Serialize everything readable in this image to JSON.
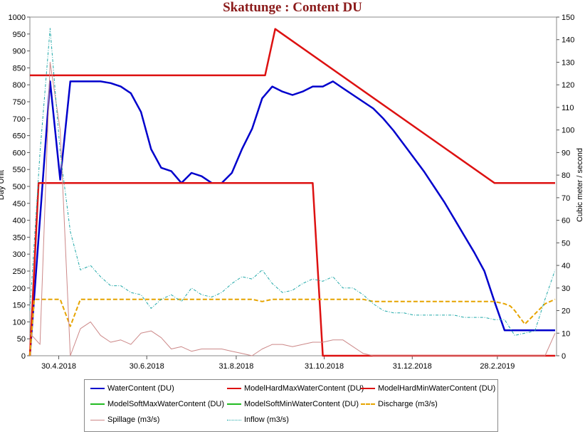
{
  "chart_data": {
    "type": "line",
    "title": "Skattunge : Content DU",
    "ylabel_left": "Day Unit",
    "ylabel_right": "Cubic meter / second",
    "ylim_left": [
      0,
      1000
    ],
    "ylim_right": [
      0,
      150
    ],
    "yticks_left": [
      "0",
      "50",
      "100",
      "150",
      "200",
      "250",
      "300",
      "350",
      "400",
      "450",
      "500",
      "550",
      "600",
      "650",
      "700",
      "750",
      "800",
      "850",
      "900",
      "950",
      "1000"
    ],
    "yticks_right": [
      "0",
      "10",
      "20",
      "30",
      "40",
      "50",
      "60",
      "70",
      "80",
      "90",
      "100",
      "110",
      "120",
      "130",
      "140",
      "150"
    ],
    "xlim": [
      0,
      365
    ],
    "xticks": [
      {
        "x": 20,
        "label": "30.4.2018"
      },
      {
        "x": 81,
        "label": "30.6.2018"
      },
      {
        "x": 143,
        "label": "31.8.2018"
      },
      {
        "x": 204,
        "label": "31.10.2018"
      },
      {
        "x": 265,
        "label": "31.12.2018"
      },
      {
        "x": 324,
        "label": "28.2.2019"
      }
    ],
    "series": [
      {
        "name": "WaterContent (DU)",
        "axis": "left",
        "color": "#0000cc",
        "style": "solid",
        "width": 2.5,
        "x": [
          0,
          14,
          21,
          28,
          35,
          42,
          49,
          56,
          63,
          70,
          77,
          84,
          91,
          98,
          105,
          112,
          119,
          126,
          133,
          140,
          147,
          154,
          161,
          168,
          175,
          182,
          189,
          196,
          203,
          210,
          217,
          224,
          231,
          238,
          245,
          252,
          259,
          266,
          273,
          280,
          287,
          294,
          301,
          308,
          315,
          322,
          329,
          336,
          343,
          350,
          357,
          364
        ],
        "y": [
          0,
          810,
          520,
          810,
          810,
          810,
          810,
          805,
          795,
          775,
          720,
          610,
          555,
          545,
          510,
          540,
          530,
          510,
          510,
          540,
          610,
          670,
          760,
          795,
          780,
          770,
          780,
          795,
          795,
          810,
          790,
          770,
          750,
          730,
          700,
          665,
          625,
          585,
          545,
          500,
          455,
          405,
          355,
          305,
          250,
          160,
          75,
          75,
          75,
          75,
          75,
          75
        ]
      },
      {
        "name": "ModelHardMaxWaterContent (DU)",
        "axis": "left",
        "color": "#dd1111",
        "style": "solid",
        "width": 2.5,
        "x": [
          0,
          163,
          170,
          322,
          364
        ],
        "y": [
          828,
          828,
          965,
          510,
          510
        ]
      },
      {
        "name": "ModelHardMinWaterContent (DU)",
        "axis": "left",
        "color": "#dd1111",
        "style": "solid",
        "width": 2.5,
        "x": [
          0,
          6,
          196,
          203,
          364
        ],
        "y": [
          0,
          510,
          510,
          0,
          0
        ]
      },
      {
        "name": "ModelSoftMaxWaterContent (DU)",
        "axis": "left",
        "color": "#22bb22",
        "style": "solid",
        "width": 2,
        "x": [],
        "y": []
      },
      {
        "name": "ModelSoftMinWaterContent (DU)",
        "axis": "left",
        "color": "#22bb22",
        "style": "solid",
        "width": 2,
        "x": [],
        "y": []
      },
      {
        "name": "Discharge (m3/s)",
        "axis": "right",
        "color": "#e6a400",
        "style": "dashed",
        "width": 2,
        "x": [
          0,
          3,
          21,
          28,
          35,
          42,
          49,
          56,
          63,
          70,
          77,
          84,
          91,
          98,
          105,
          112,
          119,
          126,
          133,
          140,
          147,
          154,
          161,
          168,
          175,
          182,
          189,
          196,
          203,
          210,
          217,
          224,
          231,
          238,
          245,
          252,
          259,
          266,
          273,
          280,
          287,
          294,
          301,
          308,
          315,
          322,
          329,
          333,
          336,
          343,
          357,
          364
        ],
        "y": [
          0,
          25,
          25,
          13,
          25,
          25,
          25,
          25,
          25,
          25,
          25,
          25,
          25,
          25,
          25,
          25,
          25,
          25,
          25,
          25,
          25,
          25,
          24,
          25,
          25,
          25,
          25,
          25,
          25,
          25,
          25,
          25,
          25,
          24,
          24,
          24,
          24,
          24,
          24,
          24,
          24,
          24,
          24,
          24,
          24,
          24,
          23,
          22,
          20,
          14,
          23,
          25
        ]
      },
      {
        "name": "Spillage (m3/s)",
        "axis": "right",
        "color": "#cc8888",
        "style": "solid",
        "width": 1,
        "x": [
          0,
          7,
          14,
          21,
          28,
          35,
          42,
          49,
          56,
          63,
          70,
          77,
          84,
          91,
          98,
          105,
          112,
          119,
          126,
          133,
          140,
          147,
          154,
          161,
          168,
          175,
          182,
          189,
          196,
          203,
          210,
          217,
          224,
          231,
          238,
          245,
          252,
          259,
          266,
          273,
          280,
          287,
          294,
          301,
          308,
          315,
          322,
          329,
          336,
          343,
          350,
          357,
          364
        ],
        "y": [
          10,
          5,
          130,
          100,
          0,
          12,
          15,
          9,
          6,
          7,
          5,
          10,
          11,
          8,
          3,
          4,
          2,
          3,
          3,
          3,
          2,
          1,
          0,
          3,
          5,
          5,
          4,
          5,
          6,
          6,
          7,
          7,
          4,
          1,
          0,
          0,
          0,
          0,
          0,
          0,
          0,
          0,
          0,
          0,
          0,
          0,
          0,
          0,
          0,
          0,
          0,
          0,
          10
        ]
      },
      {
        "name": "Inflow (m3/s)",
        "axis": "right",
        "color": "#20a8a8",
        "style": "dashdot",
        "width": 1,
        "x": [
          0,
          7,
          14,
          21,
          28,
          35,
          42,
          49,
          56,
          63,
          70,
          77,
          84,
          91,
          98,
          105,
          112,
          119,
          126,
          133,
          140,
          147,
          154,
          161,
          168,
          175,
          182,
          189,
          196,
          203,
          210,
          217,
          224,
          231,
          238,
          245,
          252,
          259,
          266,
          273,
          280,
          287,
          294,
          301,
          308,
          315,
          322,
          329,
          336,
          343,
          350,
          357,
          364
        ],
        "y": [
          20,
          90,
          145,
          90,
          55,
          38,
          40,
          35,
          31,
          31,
          28,
          27,
          21,
          25,
          27,
          24,
          30,
          27,
          26,
          28,
          32,
          35,
          34,
          38,
          32,
          28,
          29,
          32,
          34,
          33,
          35,
          30,
          30,
          27,
          23,
          20,
          19,
          19,
          18,
          18,
          18,
          18,
          18,
          17,
          17,
          17,
          16,
          16,
          9,
          10,
          11,
          25,
          38
        ]
      }
    ],
    "legend_position": "bottom",
    "grid": false
  }
}
